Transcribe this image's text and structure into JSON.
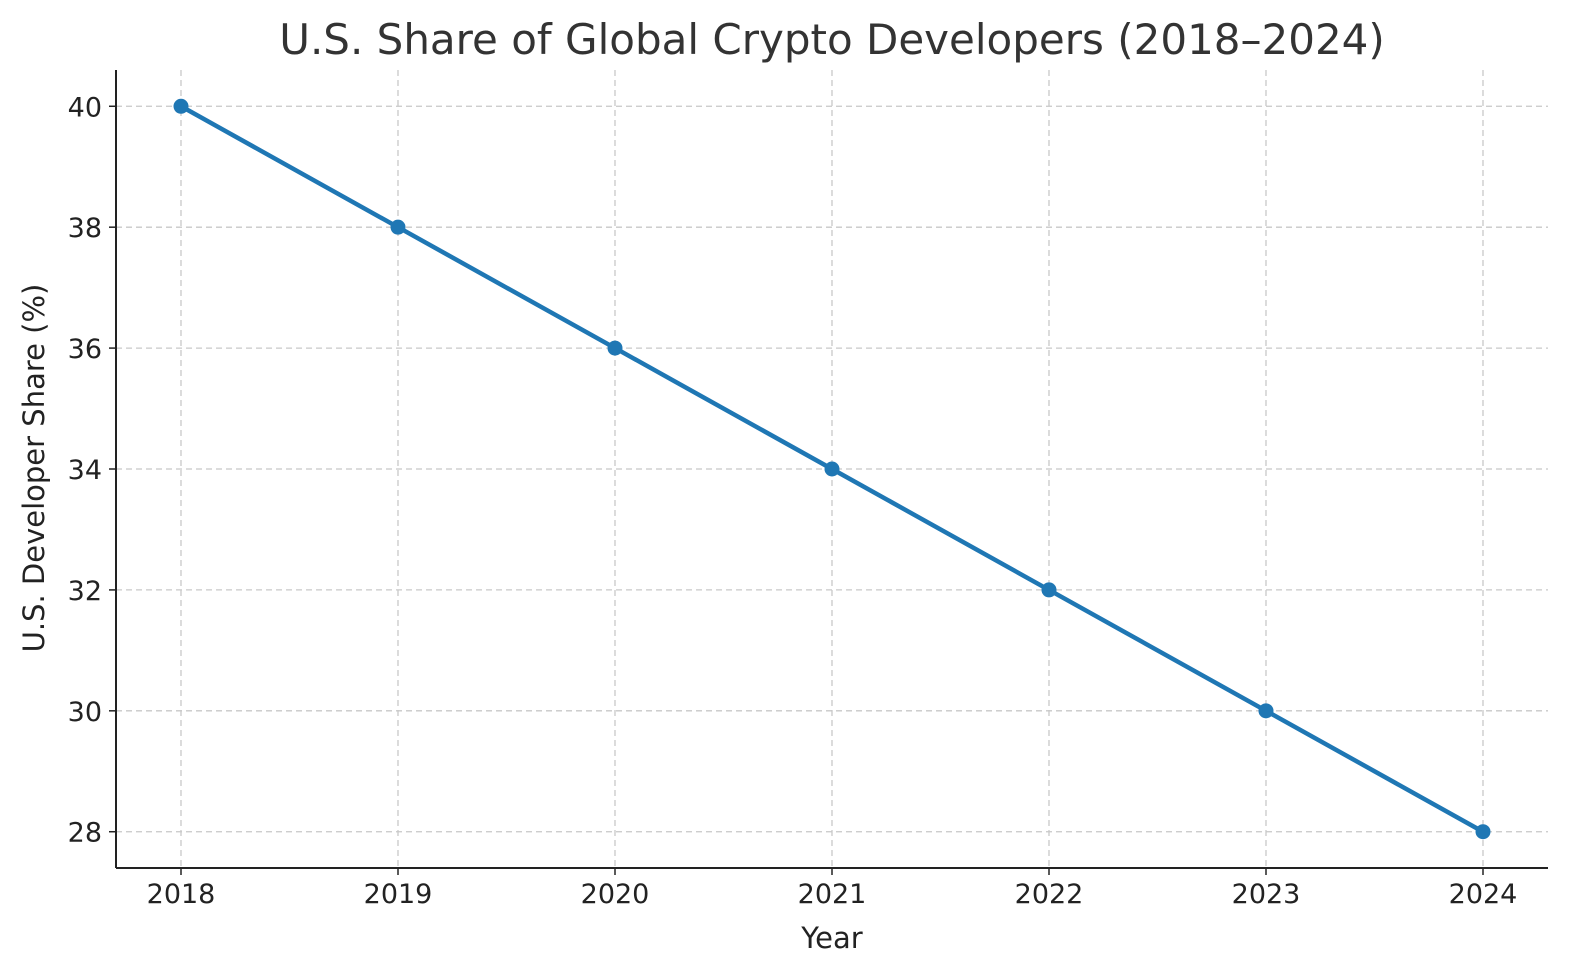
{
  "chart_data": {
    "type": "line",
    "title": "U.S. Share of Global Crypto Developers (2018–2024)",
    "xlabel": "Year",
    "ylabel": "U.S. Developer Share (%)",
    "categories": [
      "2018",
      "2019",
      "2020",
      "2021",
      "2022",
      "2023",
      "2024"
    ],
    "series": [
      {
        "values": [
          40,
          38,
          36,
          34,
          32,
          30,
          28
        ],
        "color": "#1f77b4",
        "marker": "circle"
      }
    ],
    "yticks": [
      "28",
      "30",
      "32",
      "34",
      "36",
      "38",
      "40"
    ],
    "ylim": [
      27.4,
      40.6
    ],
    "grid": true,
    "legend": "none"
  }
}
